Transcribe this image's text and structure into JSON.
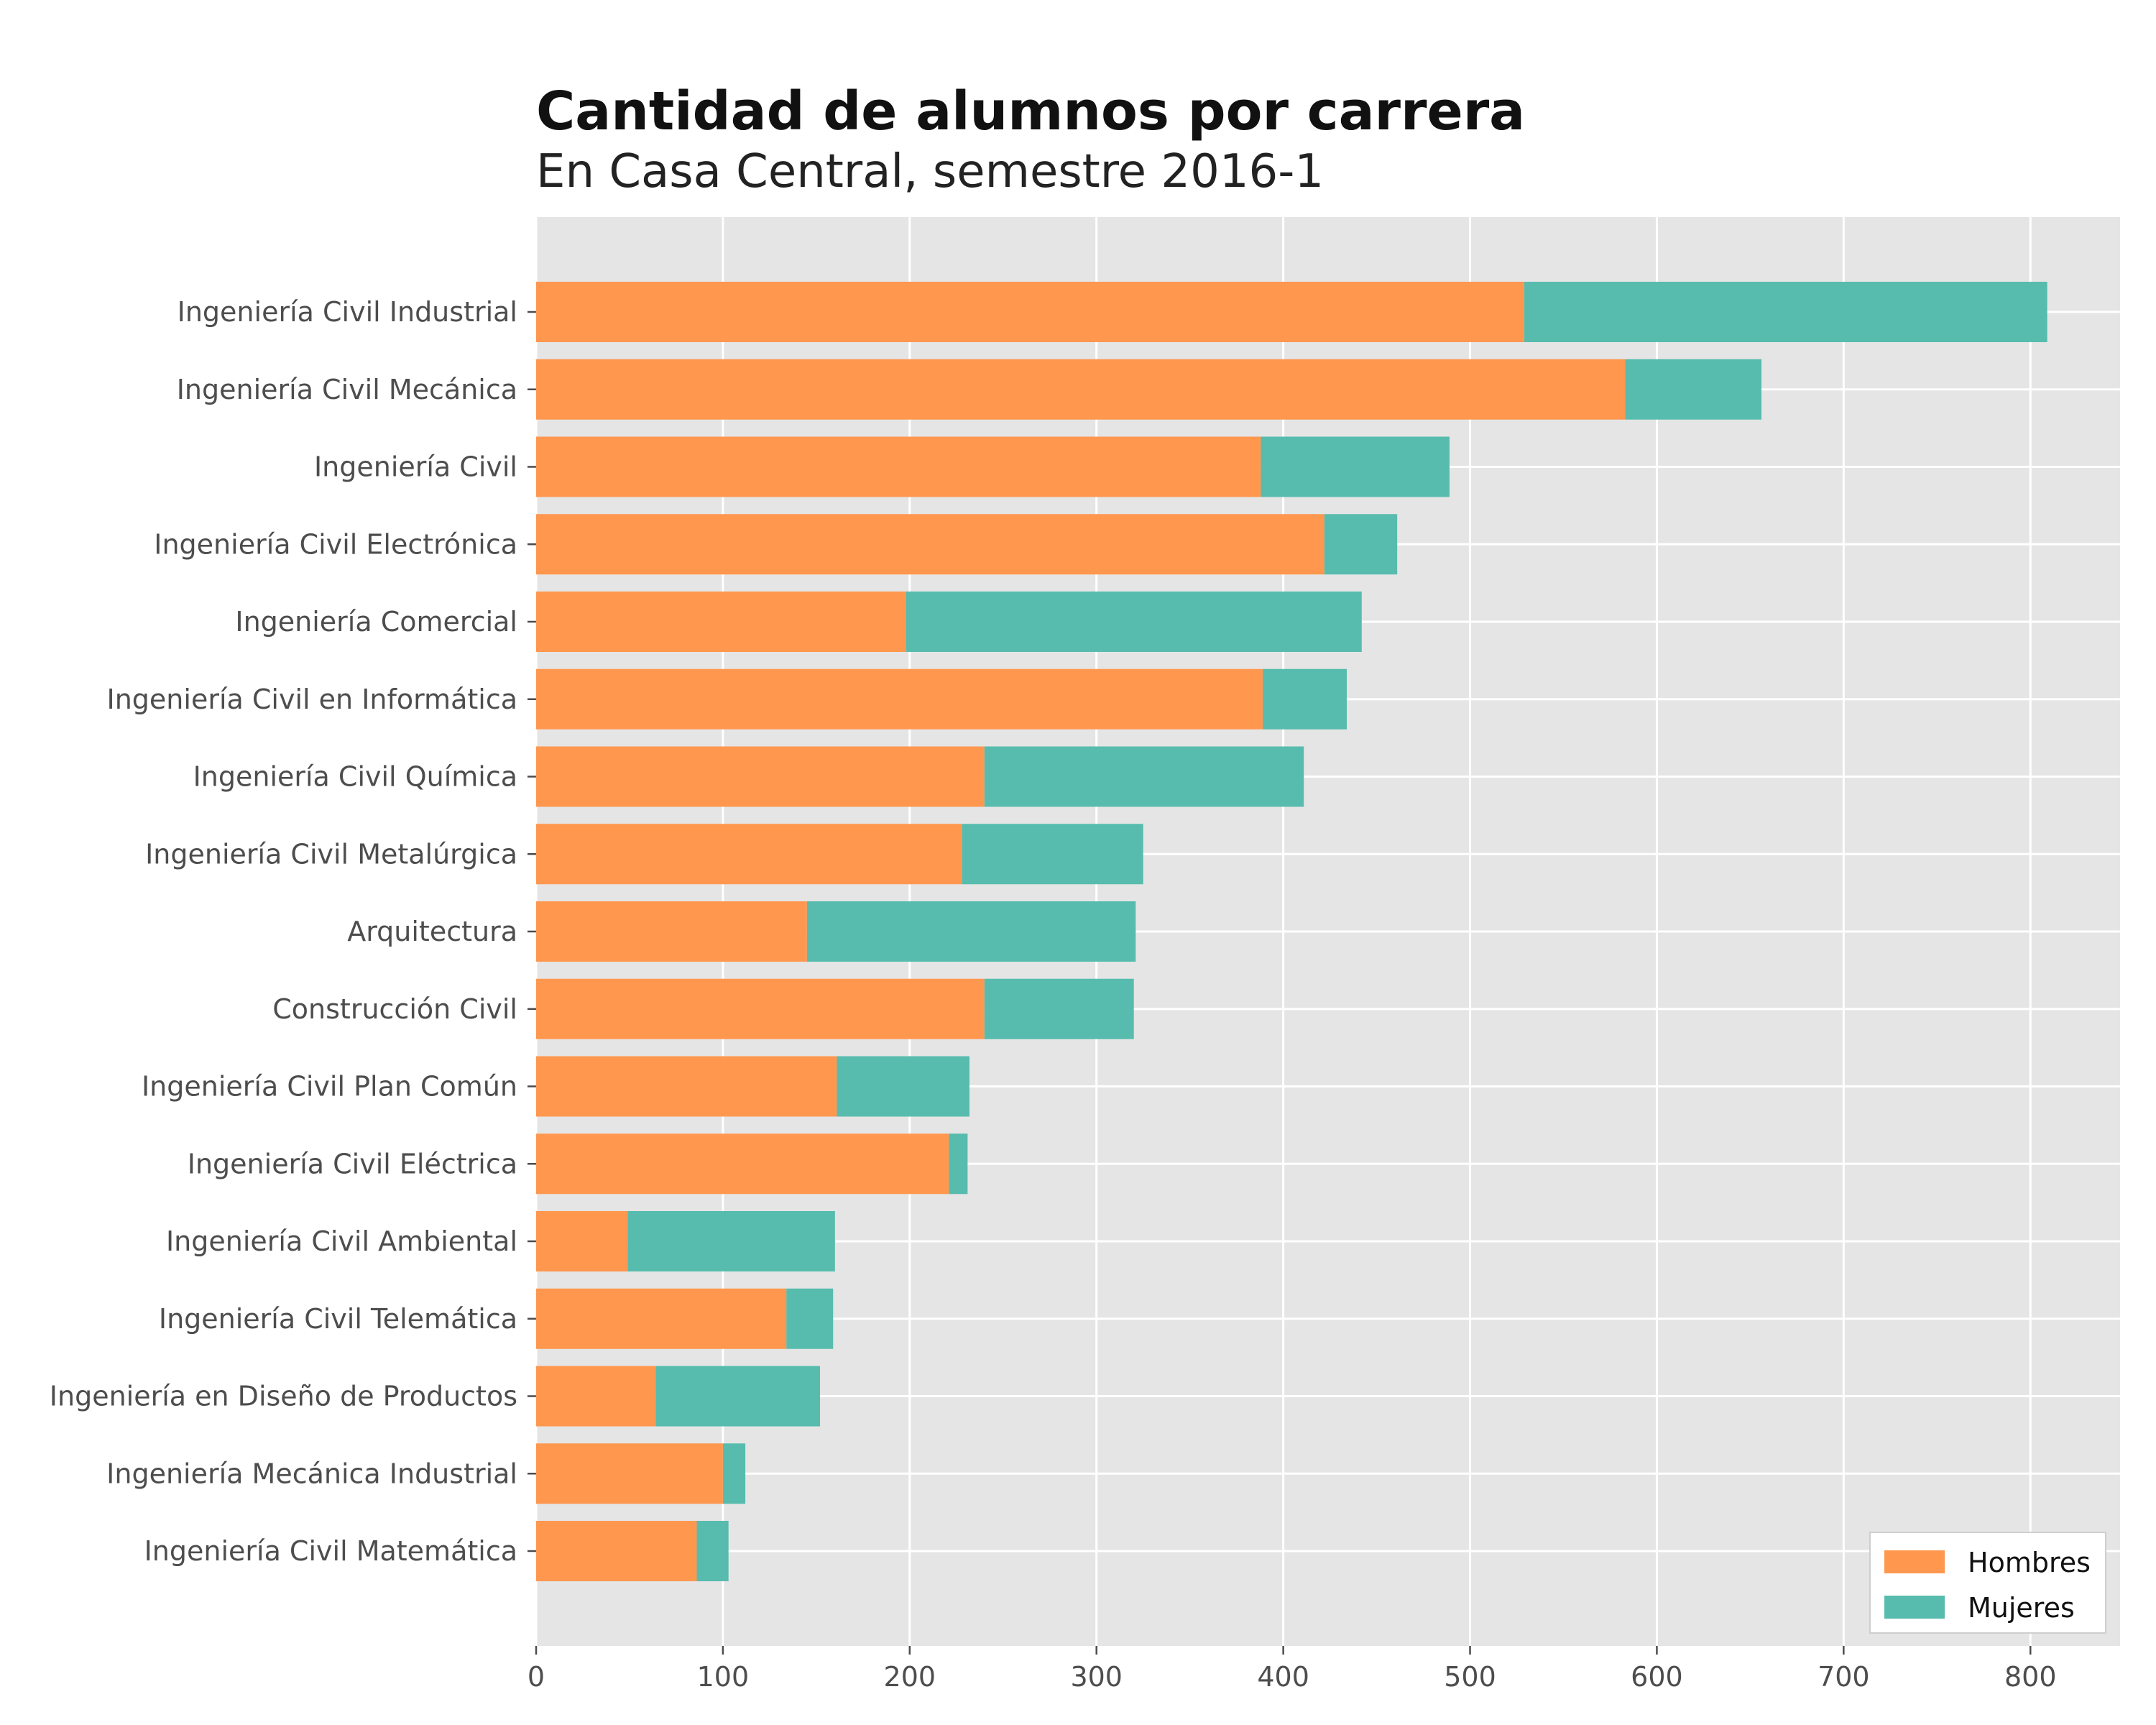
{
  "chart_data": {
    "type": "bar",
    "orientation": "horizontal",
    "stacked": true,
    "title": "Cantidad de alumnos por carrera",
    "subtitle": "En Casa Central, semestre 2016-1",
    "xlabel": "",
    "ylabel": "",
    "xlim": [
      0,
      848
    ],
    "x_ticks": [
      0,
      100,
      200,
      300,
      400,
      500,
      600,
      700,
      800
    ],
    "grid": true,
    "legend_position": "bottom-right",
    "categories": [
      "Ingeniería Civil Industrial",
      "Ingeniería Civil Mecánica",
      "Ingeniería Civil",
      "Ingeniería Civil Electrónica",
      "Ingeniería Comercial",
      "Ingeniería Civil en Informática",
      "Ingeniería Civil Química",
      "Ingeniería Civil Metalúrgica",
      "Arquitectura",
      "Construcción Civil",
      "Ingeniería Civil Plan Común",
      "Ingeniería Civil Eléctrica",
      "Ingeniería Civil Ambiental",
      "Ingeniería Civil Telemática",
      "Ingeniería en Diseño de Productos",
      "Ingeniería Mecánica Industrial",
      "Ingeniería Civil Matemática"
    ],
    "series": [
      {
        "name": "Hombres",
        "color": "#ff974f",
        "values": [
          529,
          583,
          388,
          422,
          198,
          389,
          240,
          228,
          145,
          240,
          161,
          221,
          49,
          134,
          64,
          100,
          86
        ]
      },
      {
        "name": "Mujeres",
        "color": "#57bcad",
        "values": [
          280,
          73,
          101,
          39,
          244,
          45,
          171,
          97,
          176,
          80,
          71,
          10,
          111,
          25,
          88,
          12,
          17
        ]
      }
    ],
    "colors": {
      "panel": "#e5e5e5",
      "grid": "#ffffff"
    }
  }
}
